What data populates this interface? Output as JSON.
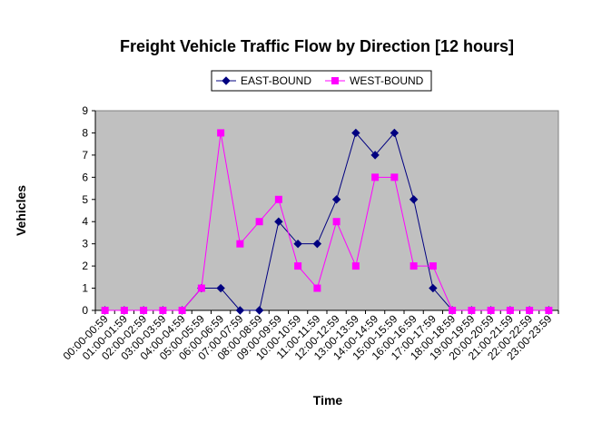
{
  "chart_data": {
    "type": "line",
    "title": "Freight Vehicle Traffic Flow by Direction [12 hours]",
    "x_label": "Time",
    "y_label": "Vehicles",
    "categories": [
      "00:00-00:59",
      "01:00-01:59",
      "02:00-02:59",
      "03:00-03:59",
      "04:00-04:59",
      "05:00-05:59",
      "06:00-06:59",
      "07:00-07:59",
      "08:00-08:59",
      "09:00-09:59",
      "10:00-10:59",
      "11:00-11:59",
      "12:00-12:59",
      "13:00-13:59",
      "14:00-14:59",
      "15:00-15:59",
      "16:00-16:59",
      "17:00-17:59",
      "18:00-18:59",
      "19:00-19:59",
      "20:00-20:59",
      "21:00-21:59",
      "22:00-22:59",
      "23:00-23:59"
    ],
    "series": [
      {
        "name": "EAST-BOUND",
        "color": "#000080",
        "marker": "diamond",
        "values": [
          0,
          0,
          0,
          0,
          0,
          1,
          1,
          0,
          0,
          4,
          3,
          3,
          5,
          8,
          7,
          8,
          5,
          1,
          0,
          0,
          0,
          0,
          0,
          0
        ]
      },
      {
        "name": "WEST-BOUND",
        "color": "#ff00ff",
        "marker": "square",
        "values": [
          0,
          0,
          0,
          0,
          0,
          1,
          8,
          3,
          4,
          5,
          2,
          1,
          4,
          2,
          6,
          6,
          2,
          2,
          0,
          0,
          0,
          0,
          0,
          0
        ]
      }
    ],
    "ylim": [
      0,
      9
    ],
    "yticks": [
      0,
      1,
      2,
      3,
      4,
      5,
      6,
      7,
      8,
      9
    ],
    "grid": false,
    "legend": "top",
    "plot_background": "#c0c0c0"
  }
}
